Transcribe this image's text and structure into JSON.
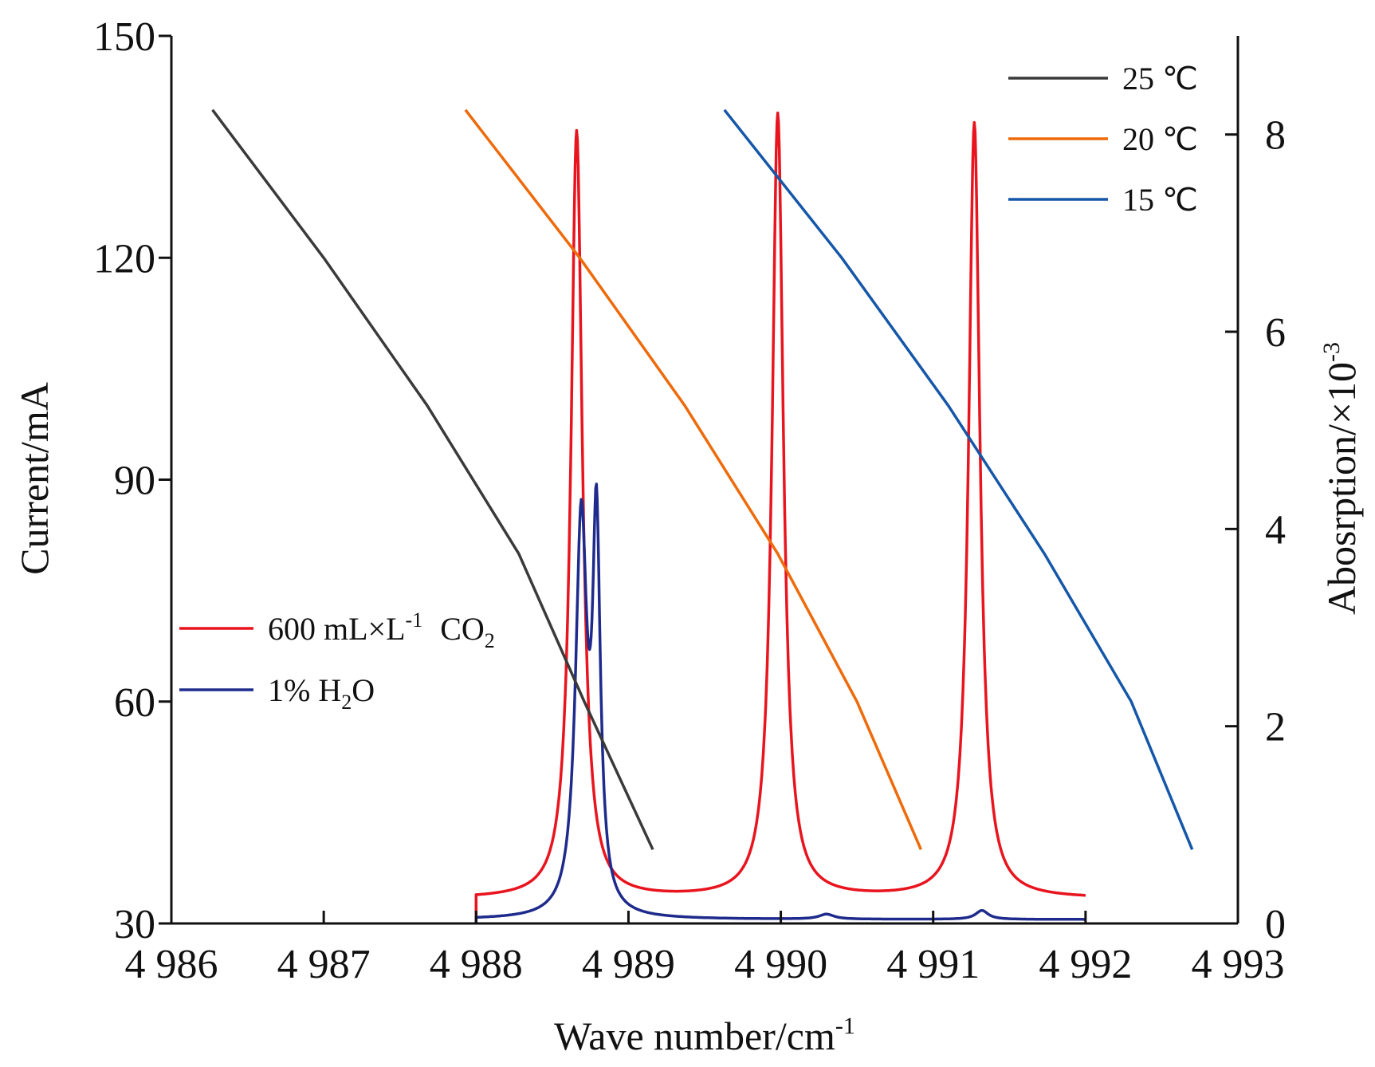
{
  "chart_data": {
    "type": "line",
    "title": "",
    "x_axis": {
      "label_main": "Wave number/cm",
      "label_sup": "-1",
      "range": [
        4986,
        4993
      ],
      "ticks": [
        4986,
        4987,
        4988,
        4989,
        4990,
        4991,
        4992,
        4993
      ],
      "tick_labels": [
        "4 986",
        "4 987",
        "4 988",
        "4 989",
        "4 990",
        "4 991",
        "4 992",
        "4 993"
      ]
    },
    "y_axis_left": {
      "label": "Current/mA",
      "range": [
        30,
        150
      ],
      "ticks": [
        30,
        60,
        90,
        120,
        150
      ],
      "tick_labels": [
        "30",
        "60",
        "90",
        "120",
        "150"
      ]
    },
    "y_axis_right": {
      "label_main": "Abosrption/×10",
      "label_sup": "-3",
      "range": [
        0,
        9
      ],
      "ticks": [
        0,
        2,
        4,
        6,
        8
      ],
      "tick_labels": [
        "0",
        "2",
        "4",
        "6",
        "8"
      ]
    },
    "current_series": [
      {
        "name": "25 ℃",
        "color": "#3a3a3a",
        "axis": "left",
        "points": [
          [
            4986.27,
            140
          ],
          [
            4987.0,
            120
          ],
          [
            4987.68,
            100
          ],
          [
            4988.28,
            80
          ],
          [
            4988.71,
            60
          ],
          [
            4989.16,
            40
          ]
        ]
      },
      {
        "name": "20 ℃",
        "color": "#ee6a0a",
        "axis": "left",
        "points": [
          [
            4987.93,
            140
          ],
          [
            4988.68,
            120
          ],
          [
            4989.37,
            100
          ],
          [
            4989.98,
            80
          ],
          [
            4990.5,
            60
          ],
          [
            4990.92,
            40
          ]
        ]
      },
      {
        "name": "15 ℃",
        "color": "#1557a8",
        "axis": "left",
        "points": [
          [
            4989.63,
            140
          ],
          [
            4990.4,
            120
          ],
          [
            4991.1,
            100
          ],
          [
            4991.73,
            80
          ],
          [
            4992.3,
            60
          ],
          [
            4992.7,
            40
          ]
        ]
      }
    ],
    "absorption_series": [
      {
        "name_main": "600 mL×L",
        "name_sup": "-1",
        "name_gas": "CO",
        "name_sub": "2",
        "color": "#e8141e",
        "axis": "right",
        "x_start": 4988.0,
        "x_end": 4992.0,
        "baseline": 0.25,
        "peaks": [
          {
            "center": 4988.66,
            "height": 7.78,
            "width": 0.045
          },
          {
            "center": 4989.98,
            "height": 7.95,
            "width": 0.045
          },
          {
            "center": 4991.27,
            "height": 7.86,
            "width": 0.045
          }
        ]
      },
      {
        "name_main": "1%  H",
        "name_sub": "2",
        "name_tail": "O",
        "color": "#1f2b8c",
        "axis": "right",
        "x_start": 4988.0,
        "x_end": 4992.0,
        "baseline": 0.04,
        "peaks": [
          {
            "center": 4988.69,
            "height": 3.95,
            "width": 0.045
          },
          {
            "center": 4988.79,
            "height": 3.75,
            "width": 0.03
          },
          {
            "center": 4990.3,
            "height": 0.05,
            "width": 0.06
          },
          {
            "center": 4991.32,
            "height": 0.09,
            "width": 0.05
          }
        ]
      }
    ],
    "legend_top_right": [
      "25 ℃",
      "20 ℃",
      "15 ℃"
    ],
    "legend_left": [
      "600 mL×L-1 CO2",
      "1% H2O"
    ],
    "grid": false
  }
}
